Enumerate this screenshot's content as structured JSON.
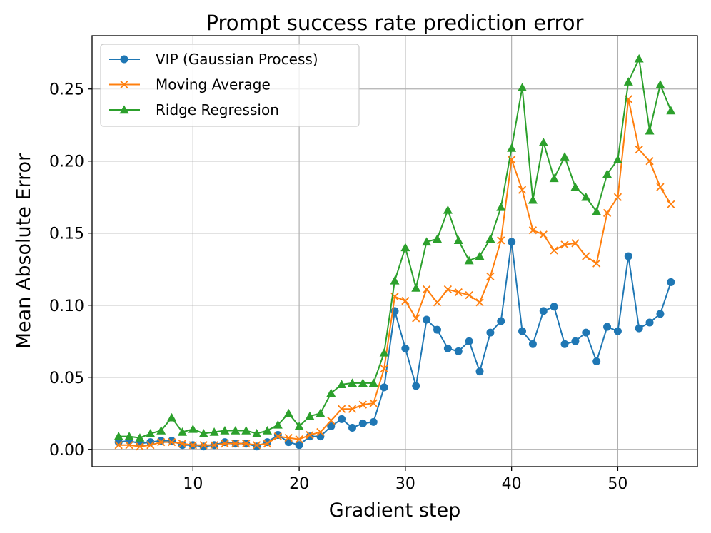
{
  "chart_data": {
    "type": "line",
    "title": "Prompt success rate prediction error",
    "xlabel": "Gradient step",
    "ylabel": "Mean Absolute Error",
    "xlim": [
      0.5,
      57.5
    ],
    "ylim": [
      -0.012,
      0.287
    ],
    "xticks": [
      10,
      20,
      30,
      40,
      50
    ],
    "yticks": [
      0.0,
      0.05,
      0.1,
      0.15,
      0.2,
      0.25
    ],
    "ytick_labels": [
      "0.00",
      "0.05",
      "0.10",
      "0.15",
      "0.20",
      "0.25"
    ],
    "grid": true,
    "legend_position": "top-left",
    "x": [
      3,
      4,
      5,
      6,
      7,
      8,
      9,
      10,
      11,
      12,
      13,
      14,
      15,
      16,
      17,
      18,
      19,
      20,
      21,
      22,
      23,
      24,
      25,
      26,
      27,
      28,
      29,
      30,
      31,
      32,
      33,
      34,
      35,
      36,
      37,
      38,
      39,
      40,
      41,
      42,
      43,
      44,
      45,
      46,
      47,
      48,
      49,
      50,
      51,
      52,
      53,
      54,
      55
    ],
    "series": [
      {
        "name": "VIP (Gaussian Process)",
        "color": "#1f77b4",
        "marker": "circle",
        "values": [
          0.005,
          0.006,
          0.004,
          0.005,
          0.006,
          0.006,
          0.003,
          0.003,
          0.002,
          0.003,
          0.005,
          0.004,
          0.004,
          0.002,
          0.005,
          0.01,
          0.005,
          0.003,
          0.009,
          0.009,
          0.016,
          0.021,
          0.015,
          0.018,
          0.019,
          0.043,
          0.096,
          0.07,
          0.044,
          0.09,
          0.083,
          0.07,
          0.068,
          0.075,
          0.054,
          0.081,
          0.089,
          0.144,
          0.082,
          0.073,
          0.096,
          0.099,
          0.073,
          0.075,
          0.081,
          0.061,
          0.085,
          0.082,
          0.134,
          0.084,
          0.088,
          0.094,
          0.116
        ]
      },
      {
        "name": "Moving Average",
        "color": "#ff7f0e",
        "marker": "x",
        "values": [
          0.003,
          0.003,
          0.002,
          0.003,
          0.005,
          0.005,
          0.004,
          0.003,
          0.003,
          0.003,
          0.004,
          0.004,
          0.004,
          0.003,
          0.004,
          0.009,
          0.008,
          0.007,
          0.01,
          0.012,
          0.02,
          0.028,
          0.028,
          0.031,
          0.032,
          0.056,
          0.106,
          0.103,
          0.091,
          0.111,
          0.102,
          0.111,
          0.109,
          0.107,
          0.102,
          0.12,
          0.145,
          0.201,
          0.18,
          0.152,
          0.149,
          0.138,
          0.142,
          0.143,
          0.134,
          0.129,
          0.164,
          0.175,
          0.243,
          0.208,
          0.2,
          0.182,
          0.17
        ]
      },
      {
        "name": "Ridge Regression",
        "color": "#2ca02c",
        "marker": "triangle",
        "values": [
          0.009,
          0.009,
          0.008,
          0.011,
          0.013,
          0.022,
          0.012,
          0.014,
          0.011,
          0.012,
          0.013,
          0.013,
          0.013,
          0.011,
          0.013,
          0.017,
          0.025,
          0.016,
          0.023,
          0.025,
          0.039,
          0.045,
          0.046,
          0.046,
          0.046,
          0.067,
          0.117,
          0.14,
          0.112,
          0.144,
          0.146,
          0.166,
          0.145,
          0.131,
          0.134,
          0.146,
          0.168,
          0.209,
          0.251,
          0.173,
          0.213,
          0.188,
          0.203,
          0.182,
          0.175,
          0.165,
          0.191,
          0.201,
          0.255,
          0.271,
          0.221,
          0.253,
          0.235
        ]
      }
    ]
  }
}
